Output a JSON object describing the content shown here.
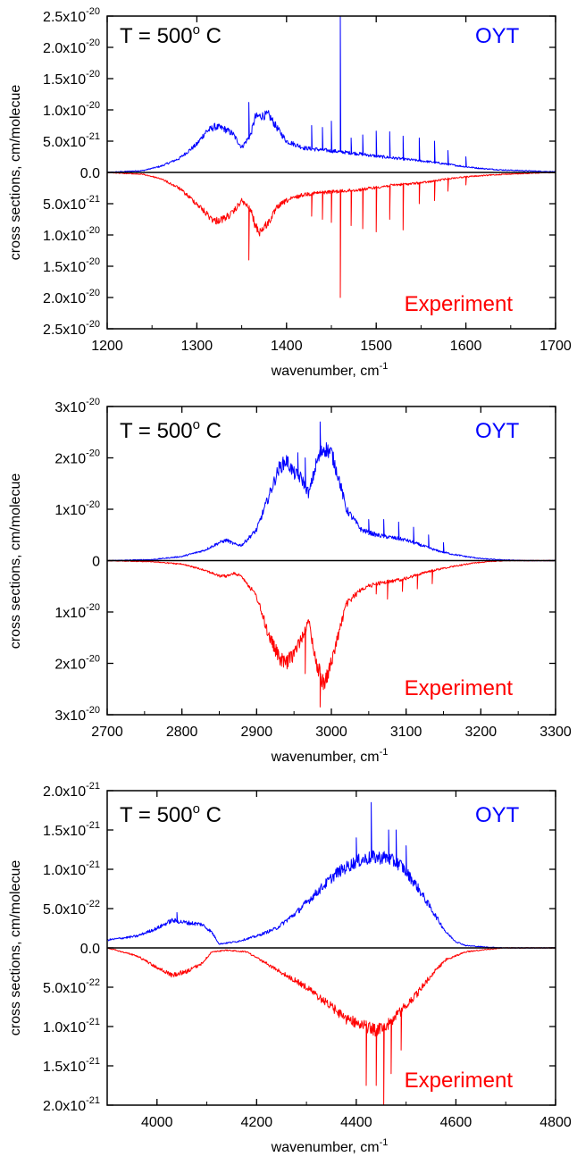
{
  "chart_data": [
    {
      "type": "line",
      "temperature_label": "T = 500",
      "temperature_sup": "o",
      "temperature_unit": " C",
      "ylabel": "cross sections, cm/molecue",
      "xlabel": "wavenumber, cm",
      "xlabel_sup": "-1",
      "xlim": [
        1200,
        1700
      ],
      "xticks": [
        1200,
        1300,
        1400,
        1500,
        1600,
        1700
      ],
      "ylim": [
        -2.5e-20,
        2.5e-20
      ],
      "yticks": [
        {
          "v": 2.5e-20,
          "m": "2.5x10",
          "e": "-20"
        },
        {
          "v": 2e-20,
          "m": "2.0x10",
          "e": "-20"
        },
        {
          "v": 1.5e-20,
          "m": "1.5x10",
          "e": "-20"
        },
        {
          "v": 1e-20,
          "m": "1.0x10",
          "e": "-20"
        },
        {
          "v": 5e-21,
          "m": "5.0x10",
          "e": "-21"
        },
        {
          "v": 0,
          "m": "0.0",
          "e": ""
        },
        {
          "v": -5e-21,
          "m": "5.0x10",
          "e": "-21"
        },
        {
          "v": -1e-20,
          "m": "1.0x10",
          "e": "-20"
        },
        {
          "v": -1.5e-20,
          "m": "1.5x10",
          "e": "-20"
        },
        {
          "v": -2e-20,
          "m": "2.0x10",
          "e": "-20"
        },
        {
          "v": -2.5e-20,
          "m": "2.5x10",
          "e": "-20"
        }
      ],
      "series": [
        {
          "name": "OYT",
          "color": "#0000ff",
          "x": [
            1200,
            1240,
            1260,
            1280,
            1300,
            1310,
            1320,
            1330,
            1340,
            1350,
            1360,
            1365,
            1370,
            1380,
            1390,
            1400,
            1420,
            1440,
            1460,
            1480,
            1500,
            1520,
            1540,
            1560,
            1580,
            1600,
            1620,
            1640,
            1660,
            1680,
            1700
          ],
          "y": [
            0,
            3e-22,
            1e-21,
            2.2e-21,
            4.5e-21,
            6.5e-21,
            7.3e-21,
            7e-21,
            6.2e-21,
            4e-21,
            6e-21,
            8.8e-21,
            9e-21,
            9.2e-21,
            7e-21,
            5e-21,
            3.9e-21,
            3.6e-21,
            3.3e-21,
            3e-21,
            2.6e-21,
            2.3e-21,
            2e-21,
            1.7e-21,
            1.3e-21,
            9e-22,
            6e-22,
            4e-22,
            3e-22,
            2e-22,
            1e-22
          ],
          "peaks": [
            [
              1358,
              1.12e-20
            ],
            [
              1428,
              7.5e-21
            ],
            [
              1440,
              7.2e-21
            ],
            [
              1450,
              8.2e-21
            ],
            [
              1460,
              2.5e-20
            ],
            [
              1472,
              5.5e-21
            ],
            [
              1485,
              6e-21
            ],
            [
              1500,
              6.6e-21
            ],
            [
              1515,
              6.5e-21
            ],
            [
              1530,
              5.8e-21
            ],
            [
              1548,
              5.5e-21
            ],
            [
              1565,
              5e-21
            ],
            [
              1580,
              3.5e-21
            ],
            [
              1600,
              2.5e-21
            ]
          ]
        },
        {
          "name": "Experiment",
          "color": "#ff0000",
          "x": [
            1200,
            1240,
            1260,
            1280,
            1300,
            1310,
            1320,
            1330,
            1340,
            1350,
            1360,
            1365,
            1370,
            1380,
            1390,
            1400,
            1420,
            1440,
            1460,
            1480,
            1500,
            1520,
            1540,
            1560,
            1580,
            1600,
            1620,
            1640,
            1660,
            1680,
            1700
          ],
          "y": [
            0,
            -3e-22,
            -1e-21,
            -2.5e-21,
            -5e-21,
            -6.5e-21,
            -7.8e-21,
            -7.4e-21,
            -6.5e-21,
            -4.5e-21,
            -6e-21,
            -8.5e-21,
            -9.5e-21,
            -8e-21,
            -5.5e-21,
            -4.5e-21,
            -3.5e-21,
            -3.2e-21,
            -3e-21,
            -2.8e-21,
            -2.4e-21,
            -2e-21,
            -1.8e-21,
            -1.5e-21,
            -1e-21,
            -7e-22,
            -5e-22,
            -3e-22,
            -2e-22,
            -1e-22,
            0
          ],
          "peaks": [
            [
              1358,
              -1.4e-20
            ],
            [
              1428,
              -7e-21
            ],
            [
              1440,
              -7.5e-21
            ],
            [
              1450,
              -8e-21
            ],
            [
              1460,
              -2e-20
            ],
            [
              1472,
              -8.5e-21
            ],
            [
              1485,
              -9e-21
            ],
            [
              1500,
              -9.5e-21
            ],
            [
              1515,
              -7.5e-21
            ],
            [
              1530,
              -9.2e-21
            ],
            [
              1548,
              -5e-21
            ],
            [
              1565,
              -4.5e-21
            ],
            [
              1580,
              -3e-21
            ],
            [
              1600,
              -2e-21
            ]
          ]
        }
      ]
    },
    {
      "type": "line",
      "temperature_label": "T = 500",
      "temperature_sup": "o",
      "temperature_unit": " C",
      "ylabel": "cross sections, cm/molecue",
      "xlabel": "wavenumber, cm",
      "xlabel_sup": "-1",
      "xlim": [
        2700,
        3300
      ],
      "xticks": [
        2700,
        2800,
        2900,
        3000,
        3100,
        3200,
        3300
      ],
      "ylim": [
        -3e-20,
        3e-20
      ],
      "yticks": [
        {
          "v": 3e-20,
          "m": "3x10",
          "e": "-20"
        },
        {
          "v": 2e-20,
          "m": "2x10",
          "e": "-20"
        },
        {
          "v": 1e-20,
          "m": "1x10",
          "e": "-20"
        },
        {
          "v": 0,
          "m": "0",
          "e": ""
        },
        {
          "v": -1e-20,
          "m": "1x10",
          "e": "-20"
        },
        {
          "v": -2e-20,
          "m": "2x10",
          "e": "-20"
        },
        {
          "v": -3e-20,
          "m": "3x10",
          "e": "-20"
        }
      ],
      "series": [
        {
          "name": "OYT",
          "color": "#0000ff",
          "x": [
            2700,
            2760,
            2800,
            2830,
            2850,
            2860,
            2870,
            2880,
            2900,
            2915,
            2930,
            2940,
            2950,
            2960,
            2970,
            2980,
            2990,
            3000,
            3010,
            3020,
            3040,
            3060,
            3080,
            3100,
            3120,
            3140,
            3160,
            3180,
            3200,
            3220,
            3240,
            3260,
            3300
          ],
          "y": [
            0,
            2e-22,
            8e-22,
            2e-21,
            3.5e-21,
            4e-21,
            3.2e-21,
            3e-21,
            6e-21,
            1.2e-20,
            1.8e-20,
            1.95e-20,
            1.7e-20,
            1.6e-20,
            1.3e-20,
            1.9e-20,
            2.2e-20,
            2.1e-20,
            1.6e-20,
            1e-20,
            6e-21,
            5e-21,
            4.5e-21,
            4e-21,
            3e-21,
            2e-21,
            1.3e-21,
            8e-22,
            4e-22,
            2e-22,
            1e-22,
            0,
            0
          ],
          "peaks": [
            [
              2985,
              2.7e-20
            ],
            [
              2955,
              2.1e-20
            ],
            [
              2965,
              2e-20
            ],
            [
              3050,
              8e-21
            ],
            [
              3070,
              8e-21
            ],
            [
              3090,
              7.5e-21
            ],
            [
              3110,
              6.5e-21
            ],
            [
              3130,
              5e-21
            ],
            [
              3150,
              3.5e-21
            ]
          ]
        },
        {
          "name": "Experiment",
          "color": "#ff0000",
          "x": [
            2700,
            2760,
            2800,
            2830,
            2850,
            2860,
            2870,
            2880,
            2900,
            2915,
            2930,
            2940,
            2950,
            2960,
            2970,
            2980,
            2990,
            3000,
            3010,
            3020,
            3040,
            3060,
            3080,
            3100,
            3120,
            3140,
            3160,
            3180,
            3200,
            3220,
            3240,
            3260,
            3300
          ],
          "y": [
            0,
            -2e-22,
            -7e-22,
            -1.8e-21,
            -3e-21,
            -3e-21,
            -2.5e-21,
            -3e-21,
            -7e-21,
            -1.4e-20,
            -1.9e-20,
            -2e-20,
            -1.8e-20,
            -1.5e-20,
            -1.2e-20,
            -2e-20,
            -2.4e-20,
            -2e-20,
            -1.4e-20,
            -8.5e-21,
            -5.5e-21,
            -4.5e-21,
            -4e-21,
            -3.5e-21,
            -2.5e-21,
            -1.8e-21,
            -1.2e-21,
            -7e-22,
            -3e-22,
            -1e-22,
            0,
            0,
            0
          ],
          "peaks": [
            [
              2985,
              -2.85e-20
            ],
            [
              2965,
              -2.2e-20
            ],
            [
              3060,
              -6.5e-21
            ],
            [
              3075,
              -7.5e-21
            ],
            [
              3095,
              -6e-21
            ],
            [
              3115,
              -5.5e-21
            ],
            [
              3135,
              -4.5e-21
            ]
          ]
        }
      ]
    },
    {
      "type": "line",
      "temperature_label": "T = 500",
      "temperature_sup": "o",
      "temperature_unit": " C",
      "ylabel": "cross sections, cm/molecue",
      "xlabel": "wavenumber, cm",
      "xlabel_sup": "-1",
      "xlim": [
        3900,
        4800
      ],
      "xticks": [
        4000,
        4200,
        4400,
        4600,
        4800
      ],
      "ylim": [
        -2e-21,
        2e-21
      ],
      "yticks": [
        {
          "v": 2e-21,
          "m": "2.0x10",
          "e": "-21"
        },
        {
          "v": 1.5e-21,
          "m": "1.5x10",
          "e": "-21"
        },
        {
          "v": 1e-21,
          "m": "1.0x10",
          "e": "-21"
        },
        {
          "v": 5e-22,
          "m": "5.0x10",
          "e": "-22"
        },
        {
          "v": 0,
          "m": "0.0",
          "e": ""
        },
        {
          "v": -5e-22,
          "m": "5.0x10",
          "e": "-22"
        },
        {
          "v": -1e-21,
          "m": "1.0x10",
          "e": "-21"
        },
        {
          "v": -1.5e-21,
          "m": "1.5x10",
          "e": "-21"
        },
        {
          "v": -2e-21,
          "m": "2.0x10",
          "e": "-21"
        }
      ],
      "series": [
        {
          "name": "OYT",
          "color": "#0000ff",
          "x": [
            3900,
            3960,
            4000,
            4030,
            4060,
            4090,
            4110,
            4125,
            4160,
            4200,
            4240,
            4280,
            4320,
            4360,
            4400,
            4430,
            4460,
            4490,
            4520,
            4550,
            4580,
            4600,
            4620,
            4660,
            4700,
            4800
          ],
          "y": [
            1e-22,
            1.5e-22,
            2.5e-22,
            3.5e-22,
            3.2e-22,
            3e-22,
            2e-22,
            5e-23,
            8e-23,
            1.5e-22,
            2.5e-22,
            4.5e-22,
            7e-22,
            9.5e-22,
            1.1e-21,
            1.15e-21,
            1.15e-21,
            1.05e-21,
            8e-22,
            5e-22,
            2e-22,
            8e-23,
            3e-23,
            1e-23,
            0,
            0
          ],
          "peaks": [
            [
              4040,
              4.5e-22
            ],
            [
              4430,
              1.85e-21
            ],
            [
              4465,
              1.5e-21
            ],
            [
              4480,
              1.5e-21
            ],
            [
              4400,
              1.4e-21
            ],
            [
              4500,
              1.3e-21
            ]
          ]
        },
        {
          "name": "Experiment",
          "color": "#ff0000",
          "x": [
            3900,
            3960,
            4000,
            4030,
            4060,
            4090,
            4110,
            4140,
            4180,
            4220,
            4260,
            4300,
            4340,
            4380,
            4420,
            4440,
            4460,
            4490,
            4520,
            4550,
            4580,
            4620,
            4660,
            4700,
            4800
          ],
          "y": [
            0,
            -1e-22,
            -2.5e-22,
            -3.5e-22,
            -3e-22,
            -2e-22,
            -5e-23,
            -3e-23,
            -5e-23,
            -2e-22,
            -3.5e-22,
            -5e-22,
            -7e-22,
            -9e-22,
            -1e-21,
            -1.05e-21,
            -1e-21,
            -8e-22,
            -6e-22,
            -3.5e-22,
            -1.5e-22,
            -5e-23,
            -2e-23,
            0,
            0
          ],
          "peaks": [
            [
              4420,
              -1.75e-21
            ],
            [
              4440,
              -1.75e-21
            ],
            [
              4455,
              -2e-21
            ],
            [
              4470,
              -1.6e-21
            ],
            [
              4490,
              -1.3e-21
            ]
          ]
        }
      ]
    }
  ]
}
